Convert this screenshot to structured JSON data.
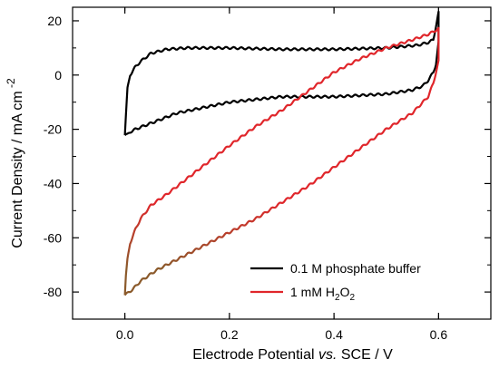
{
  "chart_data": {
    "type": "line",
    "title": "",
    "xlabel": {
      "pre": "Electrode Potential ",
      "italic": "vs.",
      "post": " SCE / V"
    },
    "ylabel": {
      "main": "Current Density / mA cm",
      "sup": "-2"
    },
    "xlim": [
      -0.1,
      0.7
    ],
    "ylim": [
      -90,
      25
    ],
    "x_ticks": [
      0.0,
      0.2,
      0.4,
      0.6
    ],
    "x_tick_labels": [
      "0.0",
      "0.2",
      "0.4",
      "0.6"
    ],
    "y_ticks": [
      20,
      0,
      -20,
      -40,
      -60,
      -80
    ],
    "y_tick_labels": [
      "20",
      "0",
      "-20",
      "-40",
      "-60",
      "-80"
    ],
    "grid": false,
    "legend_position": "bottom-right",
    "series": [
      {
        "name": "0.1 M phosphate buffer",
        "color": "#000000",
        "x": [
          0.0,
          0.002,
          0.005,
          0.01,
          0.02,
          0.03,
          0.05,
          0.08,
          0.12,
          0.2,
          0.3,
          0.4,
          0.5,
          0.56,
          0.58,
          0.59,
          0.595,
          0.6,
          0.6,
          0.595,
          0.59,
          0.58,
          0.57,
          0.55,
          0.5,
          0.45,
          0.4,
          0.35,
          0.3,
          0.25,
          0.2,
          0.15,
          0.1,
          0.06,
          0.04,
          0.02,
          0.01,
          0.005,
          0.0
        ],
        "y": [
          -22,
          -15,
          -5,
          0,
          3,
          5,
          8,
          9.5,
          10,
          10,
          9.5,
          9.5,
          10,
          11,
          12,
          13,
          18,
          23,
          12,
          4,
          1,
          -2,
          -4,
          -5.5,
          -7,
          -7.5,
          -8,
          -8,
          -8,
          -9,
          -10,
          -12,
          -14,
          -17,
          -18.5,
          -20,
          -21,
          -22,
          -22
        ]
      },
      {
        "name": "1 mM",
        "label_chem": {
          "base1": "H",
          "sub1": "2",
          "base2": "O",
          "sub2": "2"
        },
        "color": "#e0262b",
        "color_low": "#8b5a2b",
        "x": [
          0.0,
          0.002,
          0.005,
          0.01,
          0.02,
          0.03,
          0.05,
          0.08,
          0.12,
          0.16,
          0.2,
          0.25,
          0.3,
          0.35,
          0.4,
          0.45,
          0.5,
          0.55,
          0.58,
          0.59,
          0.6,
          0.6,
          0.59,
          0.58,
          0.55,
          0.5,
          0.45,
          0.4,
          0.35,
          0.3,
          0.25,
          0.2,
          0.15,
          0.1,
          0.06,
          0.03,
          0.015,
          0.005,
          0.0
        ],
        "y": [
          -81,
          -74,
          -68,
          -62,
          -57,
          -53,
          -48,
          -44,
          -38,
          -32,
          -26,
          -19,
          -13,
          -6,
          1,
          6,
          10,
          13,
          15,
          16,
          17,
          5,
          -3,
          -8,
          -14,
          -20,
          -27,
          -34,
          -41,
          -47,
          -53,
          -58,
          -63,
          -68,
          -72,
          -76,
          -79,
          -80.5,
          -81
        ]
      }
    ]
  }
}
